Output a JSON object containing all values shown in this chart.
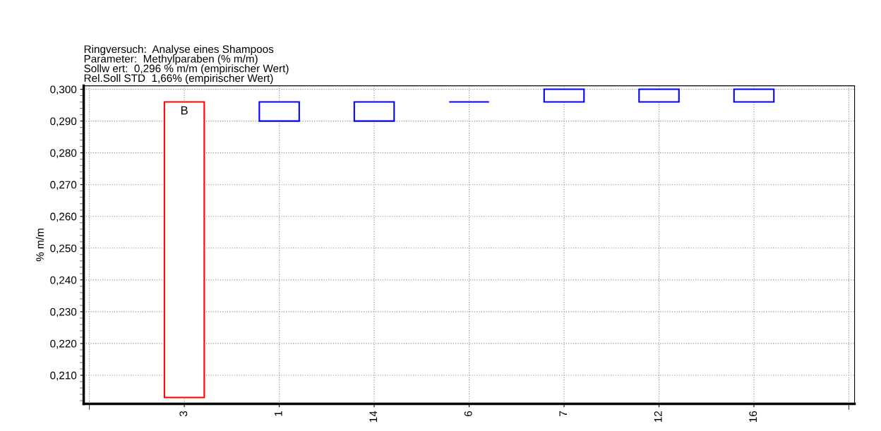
{
  "chart_data": {
    "type": "bar",
    "title": "Ringversuch:  Analyse eines Shampoos\nParameter:  Methylparaben (% m/m)\nSollw ert:  0,296 % m/m (empirischer Wert)\nRel.Soll STD  1,66% (empirischer Wert)",
    "ylabel": "% m/m",
    "categories": [
      "3",
      "1",
      "14",
      "6",
      "7",
      "12",
      "16"
    ],
    "base": [
      0.296,
      0.296,
      0.296,
      0.296,
      0.296,
      0.296,
      0.296
    ],
    "values": [
      -0.093,
      -0.006,
      -0.006,
      0,
      0.004,
      0.004,
      0.004
    ],
    "colors": [
      "#ff0000",
      "#0000ff",
      "#0000ff",
      "#0000ff",
      "#0000ff",
      "#0000ff",
      "#0000ff"
    ],
    "ylim": [
      0.201,
      0.3011
    ],
    "yticks": [
      {
        "value": 0.21,
        "label": "0,210"
      },
      {
        "value": 0.22,
        "label": "0,220"
      },
      {
        "value": 0.23,
        "label": "0,230"
      },
      {
        "value": 0.24,
        "label": "0,240"
      },
      {
        "value": 0.25,
        "label": "0,250"
      },
      {
        "value": 0.26,
        "label": "0,260"
      },
      {
        "value": 0.27,
        "label": "0,270"
      },
      {
        "value": 0.28,
        "label": "0,280"
      },
      {
        "value": 0.29,
        "label": "0,290"
      },
      {
        "value": 0.3,
        "label": "0,300"
      }
    ],
    "annotations": [
      {
        "text": "B",
        "x": "3",
        "y": 0.296
      }
    ],
    "grid": true
  }
}
